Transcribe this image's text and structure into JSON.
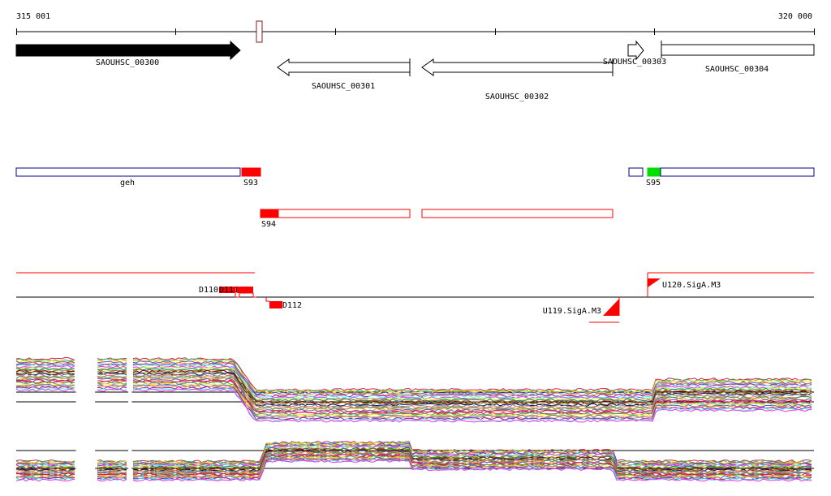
{
  "ruler": {
    "start_label": "315 001",
    "end_label": "320 000",
    "start_bp": 315001,
    "end_bp": 320000,
    "major_tick_bp": 1000
  },
  "genes": [
    {
      "id": "gene-saouhsc-00300",
      "label": "SAOUHSC_00300",
      "start_bp": 315001,
      "end_bp": 316400,
      "strand": "+",
      "style": "filled"
    },
    {
      "id": "gene-saouhsc-00301",
      "label": "SAOUHSC_00301",
      "start_bp": 316630,
      "end_bp": 317465,
      "strand": "-",
      "style": "outline"
    },
    {
      "id": "gene-saouhsc-00302",
      "label": "SAOUHSC_00302",
      "start_bp": 317500,
      "end_bp": 318700,
      "strand": "-",
      "style": "outline"
    },
    {
      "id": "gene-saouhsc-00303",
      "label": "SAOUHSC_00303",
      "start_bp": 318760,
      "end_bp": 318860,
      "strand": "+",
      "style": "outline"
    },
    {
      "id": "gene-saouhsc-00304",
      "label": "SAOUHSC_00304",
      "start_bp": 318985,
      "end_bp": 320000,
      "strand": "none",
      "style": "outline"
    }
  ],
  "segments": [
    {
      "id": "segment-geh",
      "label": "geh",
      "parts": [
        {
          "start_bp": 315001,
          "end_bp": 316400,
          "fill": "none",
          "stroke": "#00008b"
        }
      ]
    },
    {
      "id": "segment-s93",
      "label": "S93",
      "parts": [
        {
          "start_bp": 316405,
          "end_bp": 316525,
          "fill": "#ff0000",
          "stroke": "#ff0000"
        }
      ]
    },
    {
      "id": "segment-s95",
      "label": "S95",
      "parts": [
        {
          "start_bp": 318770,
          "end_bp": 318860,
          "fill": "none",
          "stroke": "#00008b"
        },
        {
          "start_bp": 318880,
          "end_bp": 318960,
          "fill": "#00dd00",
          "stroke": "#00dd00"
        },
        {
          "start_bp": 318960,
          "end_bp": 320000,
          "fill": "none",
          "stroke": "#00008b"
        }
      ]
    },
    {
      "id": "segment-s94",
      "label": "S94",
      "parts": [
        {
          "start_bp": 316530,
          "end_bp": 316640,
          "fill": "#ff0000",
          "stroke": "#ff0000"
        },
        {
          "start_bp": 316640,
          "end_bp": 317470,
          "fill": "none",
          "stroke": "#ff0000"
        },
        {
          "start_bp": 317505,
          "end_bp": 318700,
          "fill": "none",
          "stroke": "#ff0000"
        }
      ]
    }
  ],
  "features": [
    {
      "id": "feature-d110",
      "label": "D110",
      "label2": "D111"
    },
    {
      "id": "feature-d112",
      "label": "D112"
    },
    {
      "id": "feature-u119",
      "label": "U119.SigA.M3"
    },
    {
      "id": "feature-u120",
      "label": "U120.SigA.M3"
    }
  ],
  "colors": {
    "axis": "#000000",
    "gene_fill": "#000000",
    "forward_strand": "#00008b",
    "reverse_strand": "#ff0000",
    "highlight_green": "#00dd00",
    "expression_palette": [
      "#e6194b",
      "#3cb44b",
      "#ffe119",
      "#4363d8",
      "#f58231",
      "#911eb4",
      "#46f0f0",
      "#f032e6",
      "#bcf60c",
      "#008080",
      "#9a6324",
      "#800000",
      "#808000",
      "#000075",
      "#808080",
      "#ff7f50",
      "#2e8b57",
      "#daa520",
      "#6a5acd",
      "#dc143c"
    ]
  },
  "expression": {
    "track_count": 2,
    "series_per_track": 28,
    "gaps_bp": [
      [
        315375,
        315495
      ],
      [
        315703,
        315725
      ]
    ],
    "track1_levels": [
      {
        "start_bp": 315001,
        "end_bp": 316360,
        "level": "high"
      },
      {
        "start_bp": 316500,
        "end_bp": 318990,
        "level": "low"
      },
      {
        "start_bp": 319010,
        "end_bp": 320000,
        "level": "mid"
      }
    ],
    "track2_levels": [
      {
        "start_bp": 315001,
        "end_bp": 316530,
        "level": "low"
      },
      {
        "start_bp": 316570,
        "end_bp": 317480,
        "level": "high"
      },
      {
        "start_bp": 317480,
        "end_bp": 318740,
        "level": "mid-high"
      },
      {
        "start_bp": 318760,
        "end_bp": 320000,
        "level": "low"
      }
    ]
  }
}
